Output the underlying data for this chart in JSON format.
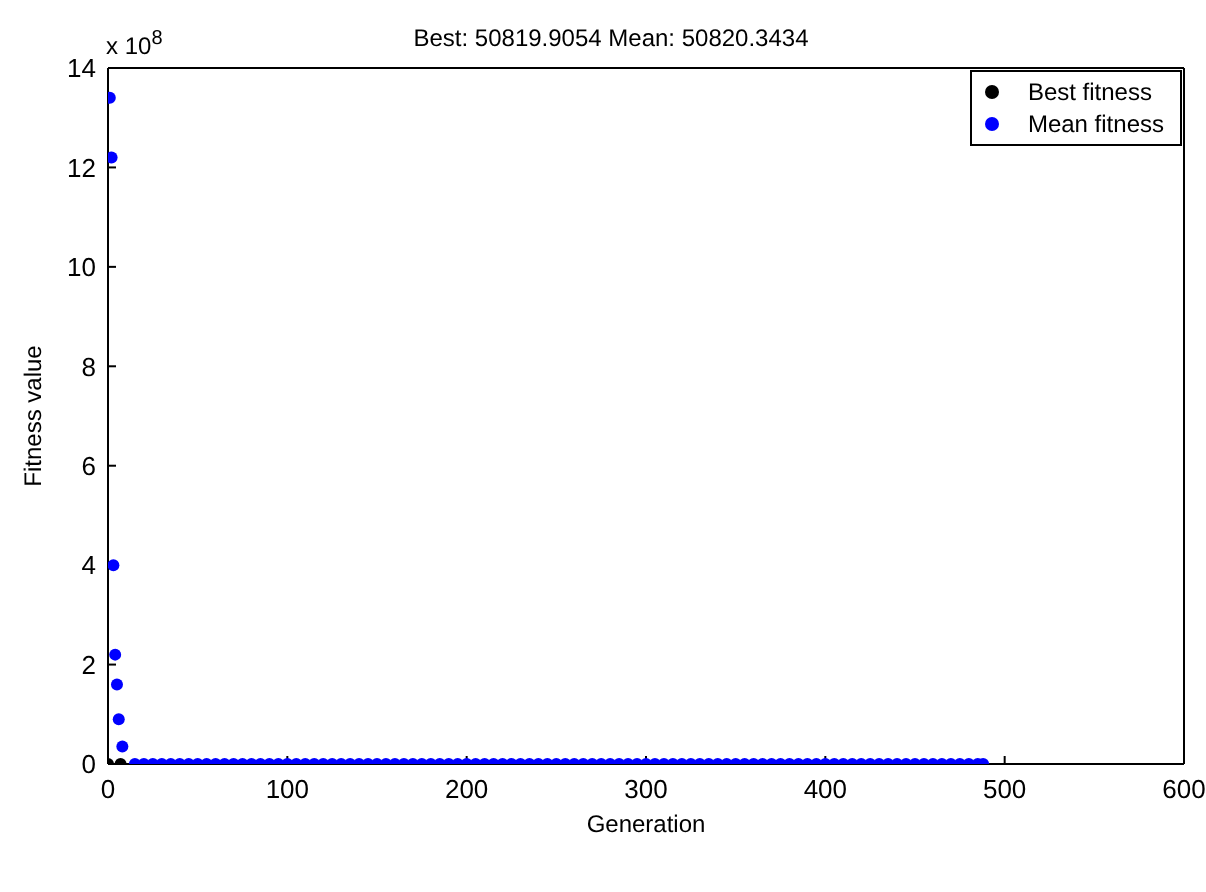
{
  "chart_data": {
    "type": "scatter",
    "title": "Best: 50819.9054 Mean: 50820.3434",
    "xlabel": "Generation",
    "ylabel": "Fitness value",
    "annotations": [
      "x 10$^{8}$"
    ],
    "series": [
      {
        "name": "Best fitness",
        "color": "#000000",
        "x": [
          0,
          7
        ],
        "values": [
          0,
          0
        ]
      },
      {
        "name": "Mean fitness",
        "color": "#0000ff",
        "x": [
          1,
          2,
          3,
          4,
          5,
          6,
          8,
          15,
          20,
          25,
          30,
          35,
          40,
          45,
          50,
          55,
          60,
          65,
          70,
          75,
          80,
          85,
          90,
          95,
          100,
          105,
          110,
          115,
          120,
          125,
          130,
          135,
          140,
          145,
          150,
          155,
          160,
          165,
          170,
          175,
          180,
          185,
          190,
          195,
          200,
          205,
          210,
          215,
          220,
          225,
          230,
          235,
          240,
          245,
          250,
          255,
          260,
          265,
          270,
          275,
          280,
          285,
          290,
          295,
          300,
          305,
          310,
          315,
          320,
          325,
          330,
          335,
          340,
          345,
          350,
          355,
          360,
          365,
          370,
          375,
          380,
          385,
          390,
          395,
          400,
          405,
          410,
          415,
          420,
          425,
          430,
          435,
          440,
          445,
          450,
          455,
          460,
          465,
          470,
          475,
          480,
          485,
          488
        ],
        "values": [
          13.4,
          12.2,
          4.0,
          2.2,
          1.6,
          0.9,
          0.35,
          0,
          0,
          0,
          0,
          0,
          0,
          0,
          0,
          0,
          0,
          0,
          0,
          0,
          0,
          0,
          0,
          0,
          0,
          0,
          0,
          0,
          0,
          0,
          0,
          0,
          0,
          0,
          0,
          0,
          0,
          0,
          0,
          0,
          0,
          0,
          0,
          0,
          0,
          0,
          0,
          0,
          0,
          0,
          0,
          0,
          0,
          0,
          0,
          0,
          0,
          0,
          0,
          0,
          0,
          0,
          0,
          0,
          0,
          0,
          0,
          0,
          0,
          0,
          0,
          0,
          0,
          0,
          0,
          0,
          0,
          0,
          0,
          0,
          0,
          0,
          0,
          0,
          0,
          0,
          0,
          0,
          0,
          0,
          0,
          0,
          0,
          0,
          0,
          0,
          0,
          0,
          0,
          0,
          0,
          0,
          0
        ]
      }
    ],
    "xlim": [
      0,
      600
    ],
    "xticks": [
      0,
      100,
      200,
      300,
      400,
      500,
      600
    ],
    "ylim": [
      0,
      14
    ],
    "yticks": [
      0,
      2,
      4,
      6,
      8,
      10,
      12,
      14
    ],
    "grid": false,
    "legend": "top right",
    "marker": "circle"
  }
}
